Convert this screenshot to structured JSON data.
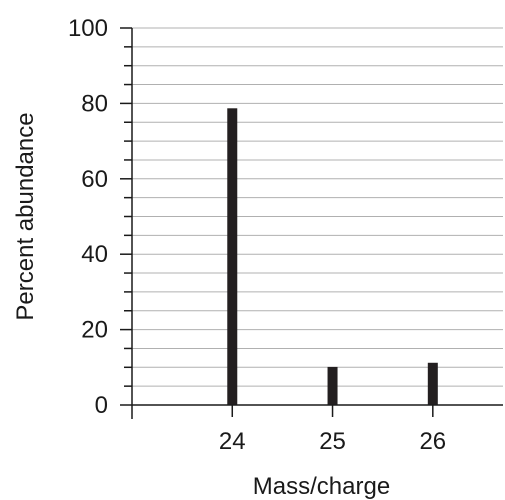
{
  "chart_data": {
    "type": "bar",
    "xlabel": "Mass/charge",
    "ylabel": "Percent abundance",
    "categories": [
      "24",
      "25",
      "26"
    ],
    "x": [
      24,
      25,
      26
    ],
    "values": [
      78.7,
      10.1,
      11.2
    ],
    "xlim": [
      23,
      26.7
    ],
    "ylim": [
      0,
      100
    ],
    "y_major_ticks": [
      0,
      20,
      40,
      60,
      80,
      100
    ],
    "y_minor_step": 5,
    "grid": true,
    "legend": "none",
    "colors": {
      "bar": "#231f20",
      "grid": "#b0b0b0",
      "axis": "#1a1a1a"
    }
  }
}
